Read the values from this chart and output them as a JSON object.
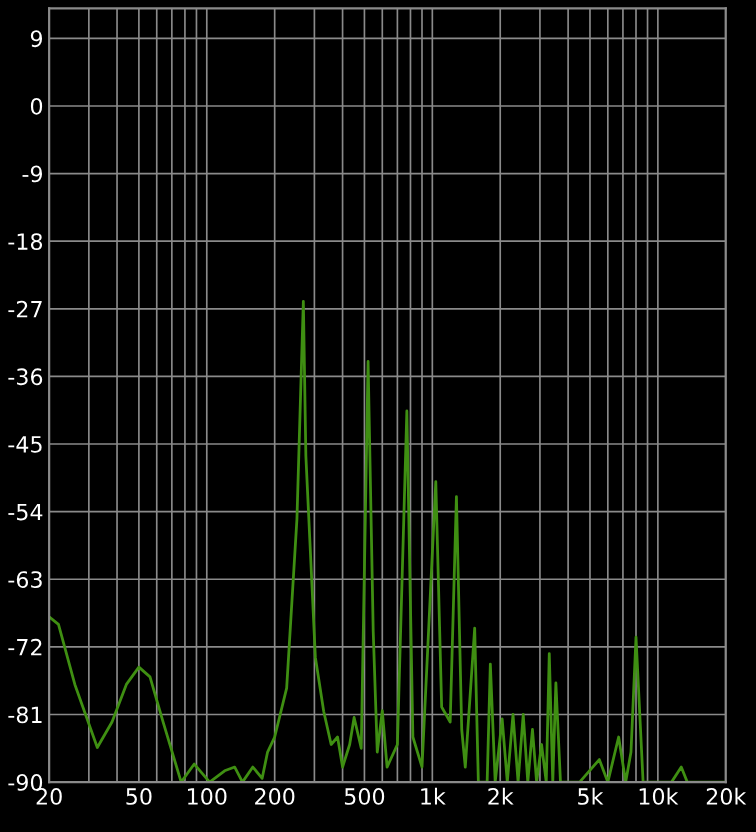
{
  "chart_data": {
    "type": "line",
    "log": "x",
    "grid": true,
    "xlim": [
      20,
      20000
    ],
    "ylim": [
      -90,
      13
    ],
    "xticks": [
      20,
      {
        "value": 30,
        "label": null
      },
      {
        "value": 40,
        "label": null
      },
      50,
      {
        "value": 60,
        "label": null
      },
      {
        "value": 70,
        "label": null
      },
      {
        "value": 80,
        "label": null
      },
      {
        "value": 90,
        "label": null
      },
      100,
      200,
      {
        "value": 300,
        "label": null
      },
      {
        "value": 400,
        "label": null
      },
      500,
      {
        "value": 600,
        "label": null
      },
      {
        "value": 700,
        "label": null
      },
      {
        "value": 800,
        "label": null
      },
      {
        "value": 900,
        "label": null
      },
      {
        "value": 1000,
        "label": "1k"
      },
      {
        "value": 2000,
        "label": "2k"
      },
      {
        "value": 3000,
        "label": null
      },
      {
        "value": 4000,
        "label": null
      },
      {
        "value": 5000,
        "label": "5k"
      },
      {
        "value": 6000,
        "label": null
      },
      {
        "value": 7000,
        "label": null
      },
      {
        "value": 8000,
        "label": null
      },
      {
        "value": 9000,
        "label": null
      },
      {
        "value": 10000,
        "label": "10k"
      },
      {
        "value": 20000,
        "label": "20k"
      }
    ],
    "yticks": [
      9,
      0,
      -9,
      -18,
      -27,
      -36,
      -45,
      -54,
      -63,
      -72,
      -81,
      -90
    ],
    "series": [
      {
        "color": "#3f8f12",
        "x": [
          20,
          22,
          26,
          32.7,
          38,
          44,
          50,
          56,
          64,
          77,
          88,
          103,
          120,
          133,
          144,
          160,
          176,
          186,
          200,
          226,
          251,
          268,
          275,
          303,
          330,
          356,
          380,
          400,
          430,
          450,
          484,
          519,
          547,
          570,
          600,
          630,
          700,
          771,
          820,
          900,
          1036,
          1100,
          1200,
          1279,
          1350,
          1400,
          1541,
          1600,
          1750,
          1808,
          1900,
          2040,
          2150,
          2279,
          2400,
          2530,
          2650,
          2780,
          2900,
          3050,
          3200,
          3300,
          3420,
          3530,
          3700,
          4500,
          5500,
          6000,
          6700,
          7200,
          7600,
          8000,
          8600,
          9500,
          11500,
          12700,
          13500,
          20000
        ],
        "values": [
          -68,
          -69,
          -77,
          -85.4,
          -82,
          -77,
          -74.7,
          -76,
          -82,
          -90,
          -87.6,
          -90,
          -88.5,
          -88,
          -90,
          -88,
          -89.5,
          -86,
          -84,
          -77.5,
          -55,
          -26,
          -46.6,
          -73.4,
          -80.6,
          -85,
          -84,
          -88,
          -85,
          -81.4,
          -85.5,
          -34,
          -70,
          -86,
          -80.5,
          -88,
          -85,
          -40.6,
          -84,
          -88,
          -50,
          -80,
          -82,
          -52,
          -83,
          -88,
          -69.5,
          -90,
          -90,
          -74.3,
          -90,
          -81.6,
          -90,
          -81,
          -90,
          -81,
          -90,
          -83,
          -90,
          -85,
          -90,
          -72.9,
          -90,
          -76.8,
          -90,
          -90,
          -87,
          -90,
          -84,
          -90,
          -86,
          -70.7,
          -90,
          -90,
          -90,
          -88,
          -90,
          -90
        ]
      }
    ]
  }
}
